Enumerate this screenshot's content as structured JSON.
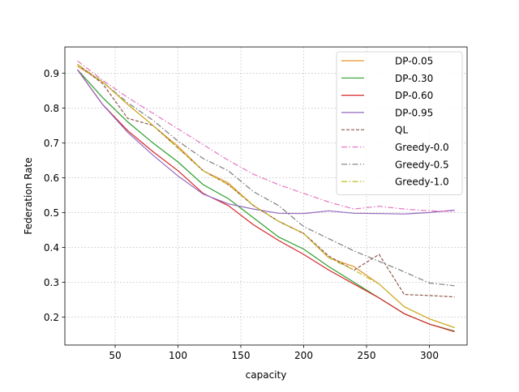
{
  "chart_data": {
    "type": "line",
    "title": "",
    "xlabel": "capacity",
    "ylabel": "Federation Rate",
    "xlim": [
      10,
      330
    ],
    "ylim": [
      0.12,
      0.975
    ],
    "xticks": [
      50,
      100,
      150,
      200,
      250,
      300
    ],
    "yticks": [
      0.2,
      0.3,
      0.4,
      0.5,
      0.6,
      0.7,
      0.8,
      0.9
    ],
    "xtick_labels": [
      "50",
      "100",
      "150",
      "200",
      "250",
      "300"
    ],
    "ytick_labels": [
      "0.2",
      "0.3",
      "0.4",
      "0.5",
      "0.6",
      "0.7",
      "0.8",
      "0.9"
    ],
    "grid": true,
    "legend_position": "top-right",
    "x": [
      20,
      40,
      60,
      80,
      100,
      120,
      140,
      160,
      180,
      200,
      220,
      240,
      260,
      280,
      300,
      320
    ],
    "series": [
      {
        "name": "DP-0.05",
        "color": "#e8922a",
        "dash": "solid",
        "values": [
          0.92,
          0.875,
          0.81,
          0.75,
          0.69,
          0.62,
          0.585,
          0.52,
          0.475,
          0.44,
          0.37,
          0.345,
          0.295,
          0.23,
          0.195,
          0.17
        ]
      },
      {
        "name": "DP-0.30",
        "color": "#2ca02c",
        "dash": "solid",
        "values": [
          0.91,
          0.83,
          0.76,
          0.7,
          0.645,
          0.58,
          0.54,
          0.485,
          0.43,
          0.395,
          0.345,
          0.3,
          0.255,
          0.21,
          0.18,
          0.16
        ]
      },
      {
        "name": "DP-0.60",
        "color": "#d62728",
        "dash": "solid",
        "values": [
          0.91,
          0.81,
          0.735,
          0.675,
          0.62,
          0.555,
          0.52,
          0.465,
          0.42,
          0.38,
          0.335,
          0.295,
          0.255,
          0.21,
          0.18,
          0.158
        ]
      },
      {
        "name": "DP-0.95",
        "color": "#9467bd",
        "dash": "solid",
        "values": [
          0.91,
          0.81,
          0.73,
          0.665,
          0.605,
          0.553,
          0.525,
          0.51,
          0.498,
          0.497,
          0.505,
          0.498,
          0.497,
          0.496,
          0.5,
          0.507
        ]
      },
      {
        "name": "QL",
        "color": "#8c564b",
        "dash": "dashed",
        "values": [
          0.925,
          0.87,
          0.77,
          0.75,
          0.685,
          0.62,
          0.58,
          0.52,
          0.475,
          0.44,
          0.375,
          0.335,
          0.38,
          0.265,
          0.262,
          0.258
        ]
      },
      {
        "name": "Greedy-0.0",
        "color": "#e377c2",
        "dash": "dashdot",
        "values": [
          0.935,
          0.88,
          0.83,
          0.785,
          0.74,
          0.695,
          0.65,
          0.61,
          0.58,
          0.555,
          0.53,
          0.51,
          0.518,
          0.51,
          0.505,
          0.503
        ]
      },
      {
        "name": "Greedy-0.5",
        "color": "#7f7f7f",
        "dash": "dashdot",
        "values": [
          0.925,
          0.875,
          0.815,
          0.765,
          0.705,
          0.655,
          0.62,
          0.56,
          0.52,
          0.46,
          0.425,
          0.39,
          0.36,
          0.33,
          0.298,
          0.29
        ]
      },
      {
        "name": "Greedy-1.0",
        "color": "#bcbd22",
        "dash": "dashdot",
        "values": [
          0.925,
          0.875,
          0.81,
          0.75,
          0.685,
          0.62,
          0.58,
          0.52,
          0.475,
          0.44,
          0.37,
          0.335,
          0.295,
          0.23,
          0.195,
          0.17
        ]
      }
    ]
  }
}
